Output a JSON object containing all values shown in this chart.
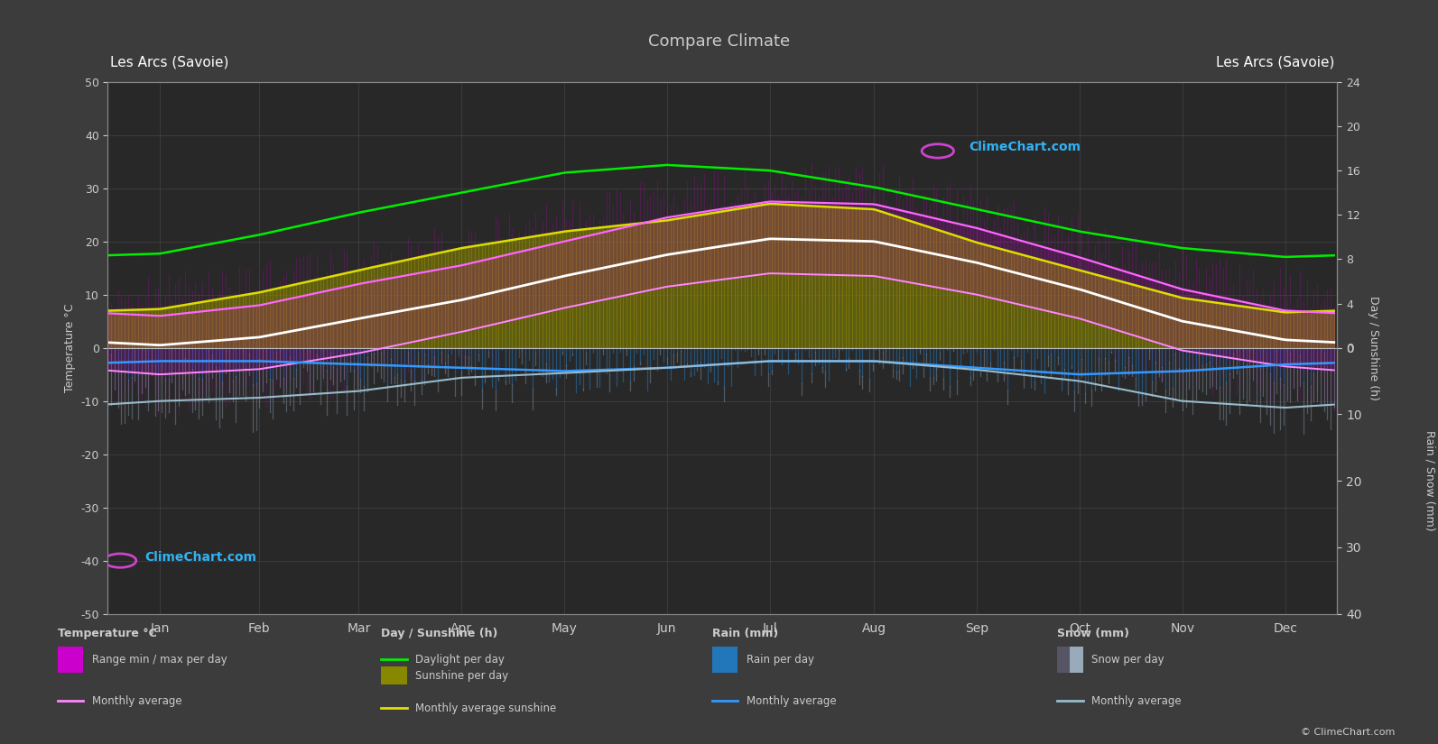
{
  "title": "Compare Climate",
  "location": "Les Arcs (Savoie)",
  "bg_color": "#3c3c3c",
  "plot_bg_color": "#282828",
  "text_color": "#cccccc",
  "grid_color": "#555555",
  "months": [
    "Jan",
    "Feb",
    "Mar",
    "Apr",
    "May",
    "Jun",
    "Jul",
    "Aug",
    "Sep",
    "Oct",
    "Nov",
    "Dec"
  ],
  "days_in_month": [
    31,
    28,
    31,
    30,
    31,
    30,
    31,
    31,
    30,
    31,
    30,
    31
  ],
  "temp_ylim": [
    -50,
    50
  ],
  "temp_avg": [
    0.5,
    2.0,
    5.5,
    9.0,
    13.5,
    17.5,
    20.5,
    20.0,
    16.0,
    11.0,
    5.0,
    1.5
  ],
  "temp_min_avg": [
    -5.0,
    -4.0,
    -1.0,
    3.0,
    7.5,
    11.5,
    14.0,
    13.5,
    10.0,
    5.5,
    -0.5,
    -3.5
  ],
  "temp_max_avg": [
    6.0,
    8.0,
    12.0,
    15.5,
    20.0,
    24.5,
    27.5,
    27.0,
    22.5,
    17.0,
    11.0,
    7.0
  ],
  "daylight_h": [
    8.5,
    10.2,
    12.2,
    14.0,
    15.8,
    16.5,
    16.0,
    14.5,
    12.5,
    10.5,
    9.0,
    8.2
  ],
  "sunshine_h": [
    3.5,
    5.0,
    7.0,
    9.0,
    10.5,
    11.5,
    13.0,
    12.5,
    9.5,
    7.0,
    4.5,
    3.2
  ],
  "rain_mm": [
    2.0,
    2.0,
    2.5,
    3.0,
    3.5,
    3.0,
    2.0,
    2.0,
    3.0,
    4.0,
    3.5,
    2.5
  ],
  "snow_mm": [
    6.0,
    5.5,
    4.0,
    1.5,
    0.3,
    0.0,
    0.0,
    0.0,
    0.3,
    1.0,
    4.5,
    6.5
  ],
  "temp_noise_amp": 8.0,
  "rain_noise_scale": 3.5,
  "snow_noise_scale": 2.5,
  "day_axis_max": 24,
  "rain_axis_max": 40
}
